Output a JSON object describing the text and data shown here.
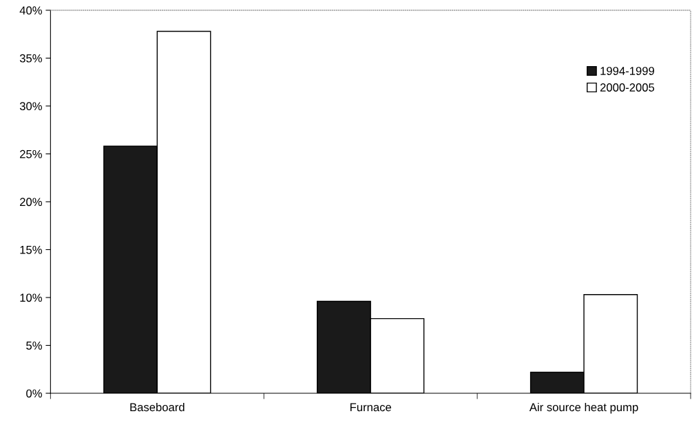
{
  "chart_data": {
    "type": "bar",
    "categories": [
      "Baseboard",
      "Furnace",
      "Air source heat pump"
    ],
    "series": [
      {
        "name": "1994-1999",
        "color": "#1a1a1a",
        "values": [
          25.8,
          9.6,
          2.2
        ]
      },
      {
        "name": "2000-2005",
        "color": "#ffffff",
        "values": [
          37.8,
          7.8,
          10.3
        ]
      }
    ],
    "ylim": [
      0,
      40
    ],
    "yticks": [
      {
        "value": 0,
        "label": "0%"
      },
      {
        "value": 5,
        "label": "5%"
      },
      {
        "value": 10,
        "label": "10%"
      },
      {
        "value": 15,
        "label": "15%"
      },
      {
        "value": 20,
        "label": "20%"
      },
      {
        "value": 25,
        "label": "25%"
      },
      {
        "value": 30,
        "label": "30%"
      },
      {
        "value": 35,
        "label": "35%"
      },
      {
        "value": 40,
        "label": "40%"
      }
    ],
    "grid": false,
    "legend": "top right"
  }
}
